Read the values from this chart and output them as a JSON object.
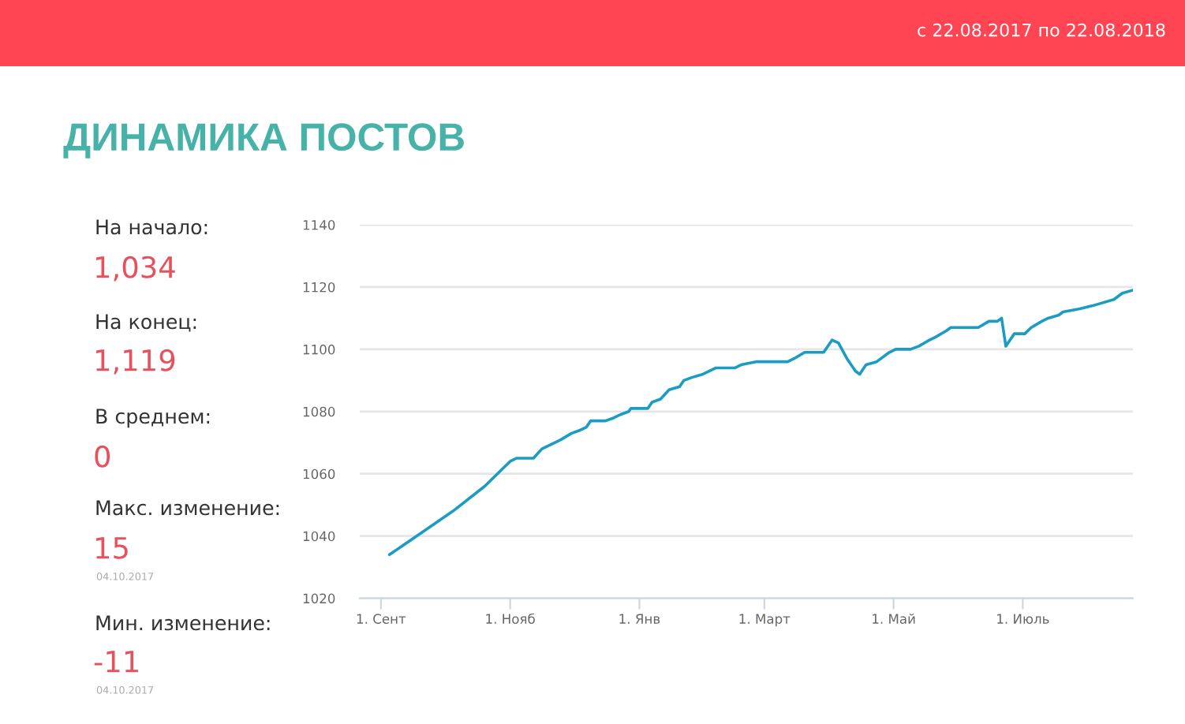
{
  "chart_data": [
    {
      "type": "other",
      "annotations": [
        "На начало:",
        "1,034",
        "На конец:",
        "1,119",
        "В среднем:",
        "0",
        "Макс. изменение:",
        "15",
        "04.10.2017",
        "Мин. изменение:",
        "-11",
        "04.10.2017"
      ]
    },
    {
      "type": "line",
      "title": "ДИНАМИКА ПОСТОВ",
      "subtitle": "с 22.08.2017 по 22.08.2018",
      "x": [
        "2017-09-05",
        "2017-09-20",
        "2017-10-05",
        "2017-10-20",
        "2017-11-01",
        "2017-11-04",
        "2017-11-12",
        "2017-11-16",
        "2017-11-22",
        "2017-11-25",
        "2017-11-30",
        "2017-12-04",
        "2017-12-07",
        "2017-12-09",
        "2017-12-16",
        "2017-12-20",
        "2017-12-23",
        "2017-12-27",
        "2017-12-28",
        "2018-01-05",
        "2018-01-07",
        "2018-01-11",
        "2018-01-15",
        "2018-01-20",
        "2018-01-22",
        "2018-01-26",
        "2018-01-31",
        "2018-02-06",
        "2018-02-15",
        "2018-02-18",
        "2018-02-25",
        "2018-03-12",
        "2018-03-15",
        "2018-03-20",
        "2018-03-29",
        "2018-04-02",
        "2018-04-05",
        "2018-04-09",
        "2018-04-13",
        "2018-04-15",
        "2018-04-18",
        "2018-04-23",
        "2018-04-29",
        "2018-05-02",
        "2018-05-09",
        "2018-05-13",
        "2018-05-18",
        "2018-05-21",
        "2018-05-26",
        "2018-05-28",
        "2018-06-07",
        "2018-06-10",
        "2018-06-15",
        "2018-06-19",
        "2018-06-21",
        "2018-06-23",
        "2018-06-27",
        "2018-07-02",
        "2018-07-05",
        "2018-07-10",
        "2018-07-13",
        "2018-07-18",
        "2018-07-20",
        "2018-07-28",
        "2018-08-03",
        "2018-08-13",
        "2018-08-17",
        "2018-08-22"
      ],
      "series": [
        {
          "color": "#1c9cc2",
          "values": [
            1034,
            1041,
            1048,
            1056,
            1064,
            1065,
            1065,
            1068,
            1070,
            1071,
            1073,
            1074,
            1075,
            1077,
            1077,
            1078,
            1079,
            1080,
            1081,
            1081,
            1083,
            1084,
            1087,
            1088,
            1090,
            1091,
            1092,
            1094,
            1094,
            1095,
            1096,
            1096,
            1097,
            1099,
            1099,
            1103,
            1102,
            1097,
            1093,
            1092,
            1095,
            1096,
            1099,
            1100,
            1100,
            1101,
            1103,
            1104,
            1106,
            1107,
            1107,
            1107,
            1109,
            1109,
            1110,
            1101,
            1105,
            1105,
            1107,
            1109,
            1110,
            1111,
            1112,
            1113,
            1114,
            1116,
            1118,
            1119
          ]
        }
      ],
      "xlim": [
        "2017-08-22",
        "2018-08-22"
      ],
      "xticks": [
        {
          "value": "2017-09-01",
          "label": "1. Сент"
        },
        {
          "value": "2017-11-01",
          "label": "1. Нояб"
        },
        {
          "value": "2018-01-01",
          "label": "1. Янв"
        },
        {
          "value": "2018-03-01",
          "label": "1. Март"
        },
        {
          "value": "2018-05-01",
          "label": "1. Май"
        },
        {
          "value": "2018-07-01",
          "label": "1. Июль"
        }
      ],
      "ylim": [
        1020,
        1140
      ],
      "yticks": [
        1020,
        1040,
        1060,
        1080,
        1100,
        1120,
        1140
      ],
      "grid": "y"
    }
  ]
}
